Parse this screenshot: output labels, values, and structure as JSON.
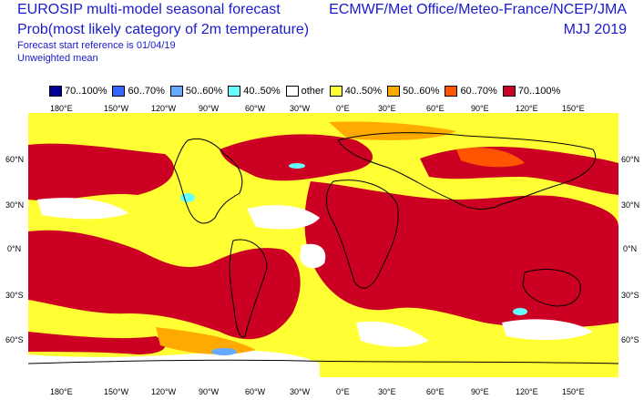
{
  "header": {
    "left_line1": "EUROSIP multi-model seasonal forecast",
    "left_line2": "Prob(most likely category of 2m temperature)",
    "left_line3": "Forecast start reference is 01/04/19",
    "left_line4": "Unweighted mean",
    "right_line1": "ECMWF/Met Office/Meteo-France/NCEP/JMA",
    "right_line2": "MJJ 2019"
  },
  "legend": [
    {
      "label": "70..100%",
      "color": "#000099"
    },
    {
      "label": "60..70%",
      "color": "#3366ff"
    },
    {
      "label": "50..60%",
      "color": "#66aaff"
    },
    {
      "label": "40..50%",
      "color": "#66ffff"
    },
    {
      "label": "other",
      "color": "#ffffff"
    },
    {
      "label": "40..50%",
      "color": "#ffff33"
    },
    {
      "label": "50..60%",
      "color": "#ffaa00"
    },
    {
      "label": "60..70%",
      "color": "#ff5500"
    },
    {
      "label": "70..100%",
      "color": "#cc0022"
    }
  ],
  "map": {
    "lon_labels": [
      "180°E",
      "150°W",
      "120°W",
      "90°W",
      "60°W",
      "30°W",
      "0°E",
      "30°E",
      "60°E",
      "90°E",
      "120°E",
      "150°E"
    ],
    "lat_labels": [
      "60°N",
      "30°N",
      "0°N",
      "30°S",
      "60°S"
    ],
    "colors": {
      "red": "#cc0022",
      "orange": "#ffaa00",
      "orange_red": "#ff5500",
      "yellow": "#ffff33",
      "white": "#ffffff",
      "cyan": "#66ffff",
      "light_blue": "#66aaff"
    }
  }
}
